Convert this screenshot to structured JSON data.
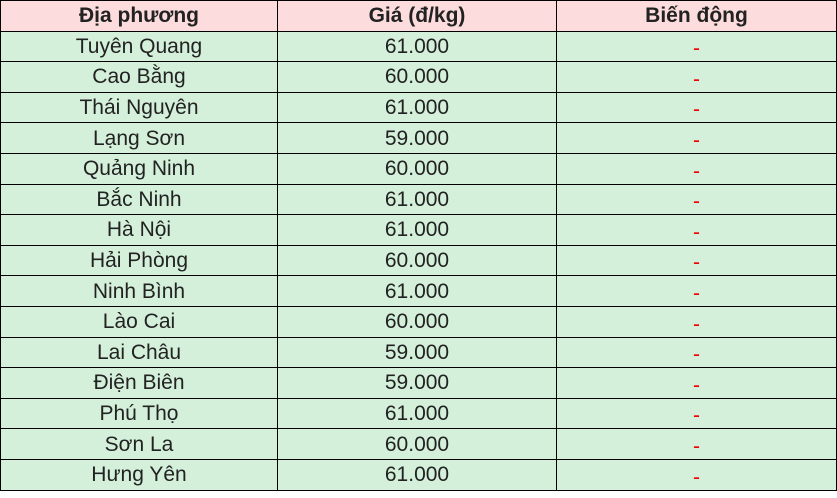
{
  "table": {
    "headers": [
      "Địa phương",
      "Giá (đ/kg)",
      "Biến động"
    ],
    "rows": [
      {
        "region": "Tuyên Quang",
        "price": "61.000",
        "change": "-"
      },
      {
        "region": "Cao Bằng",
        "price": "60.000",
        "change": "-"
      },
      {
        "region": "Thái Nguyên",
        "price": "61.000",
        "change": "-"
      },
      {
        "region": "Lạng Sơn",
        "price": "59.000",
        "change": "-"
      },
      {
        "region": "Quảng Ninh",
        "price": "60.000",
        "change": "-"
      },
      {
        "region": "Bắc Ninh",
        "price": "61.000",
        "change": "-"
      },
      {
        "region": "Hà Nội",
        "price": "61.000",
        "change": "-"
      },
      {
        "region": "Hải Phòng",
        "price": "60.000",
        "change": "-"
      },
      {
        "region": "Ninh Bình",
        "price": "61.000",
        "change": "-"
      },
      {
        "region": "Lào Cai",
        "price": "60.000",
        "change": "-"
      },
      {
        "region": "Lai Châu",
        "price": "59.000",
        "change": "-"
      },
      {
        "region": "Điện Biên",
        "price": "59.000",
        "change": "-"
      },
      {
        "region": "Phú Thọ",
        "price": "61.000",
        "change": "-"
      },
      {
        "region": "Sơn La",
        "price": "60.000",
        "change": "-"
      },
      {
        "region": "Hưng Yên",
        "price": "61.000",
        "change": "-"
      }
    ]
  },
  "colors": {
    "header_bg": "#fcdcdc",
    "row_bg": "#d4f0da",
    "change_color": "#f00000"
  }
}
